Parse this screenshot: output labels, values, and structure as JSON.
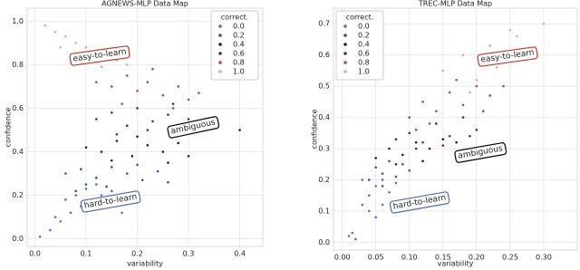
{
  "chart_data": [
    {
      "type": "scatter",
      "title": "AGNEWS-MLP Data Map",
      "xlabel": "variability",
      "ylabel": "confidence",
      "xlim": [
        -0.015,
        0.445
      ],
      "ylim": [
        -0.035,
        1.06
      ],
      "xticks": [
        {
          "value": 0,
          "label": "0.0"
        },
        {
          "value": 0.1,
          "label": "0.1"
        },
        {
          "value": 0.2,
          "label": "0.2"
        },
        {
          "value": 0.3,
          "label": "0.3"
        },
        {
          "value": 0.4,
          "label": "0.4"
        }
      ],
      "yticks": [
        {
          "value": 0,
          "label": "0.0"
        },
        {
          "value": 0.2,
          "label": "0.2"
        },
        {
          "value": 0.4,
          "label": "0.4"
        },
        {
          "value": 0.6,
          "label": "0.6"
        },
        {
          "value": 0.8,
          "label": "0.8"
        },
        {
          "value": 1,
          "label": "1.0"
        }
      ],
      "grid": true,
      "legend": "upper right",
      "legend_title": "correct.",
      "annotations": [
        {
          "text": "easy-to-learn",
          "color": "#c0392b"
        },
        {
          "text": "ambiguous",
          "color": "#000000"
        },
        {
          "text": "hard-to-learn",
          "color": "#4a6fb0"
        }
      ],
      "series": [
        {
          "name": "0.0",
          "color": "#4a6fe3",
          "x": [
            0.01,
            0.03,
            0.05,
            0.07,
            0.09,
            0.11,
            0.13,
            0.15,
            0.04,
            0.08,
            0.12,
            0.06,
            0.1,
            0.17
          ],
          "y": [
            0.01,
            0.04,
            0.08,
            0.12,
            0.15,
            0.18,
            0.2,
            0.22,
            0.1,
            0.2,
            0.25,
            0.18,
            0.23,
            0.12
          ]
        },
        {
          "name": "0.2",
          "color": "#3b4f9a",
          "x": [
            0.06,
            0.09,
            0.12,
            0.15,
            0.18,
            0.21,
            0.24,
            0.1,
            0.14,
            0.2,
            0.26,
            0.08
          ],
          "y": [
            0.3,
            0.32,
            0.28,
            0.33,
            0.3,
            0.27,
            0.31,
            0.25,
            0.24,
            0.34,
            0.26,
            0.22
          ]
        },
        {
          "name": "0.4",
          "color": "#222222",
          "x": [
            0.1,
            0.13,
            0.16,
            0.19,
            0.22,
            0.25,
            0.28,
            0.3,
            0.15,
            0.2,
            0.26,
            0.4
          ],
          "y": [
            0.42,
            0.4,
            0.45,
            0.38,
            0.43,
            0.4,
            0.44,
            0.38,
            0.36,
            0.47,
            0.35,
            0.5
          ]
        },
        {
          "name": "0.6",
          "color": "#5b2d2d",
          "x": [
            0.12,
            0.15,
            0.18,
            0.2,
            0.23,
            0.26,
            0.28,
            0.3,
            0.16,
            0.22,
            0.27,
            0.35
          ],
          "y": [
            0.55,
            0.58,
            0.52,
            0.6,
            0.54,
            0.57,
            0.5,
            0.55,
            0.48,
            0.5,
            0.62,
            0.52
          ]
        },
        {
          "name": "0.8",
          "color": "#b04545",
          "x": [
            0.12,
            0.15,
            0.18,
            0.2,
            0.22,
            0.25,
            0.28,
            0.3,
            0.17,
            0.23,
            0.27,
            0.32
          ],
          "y": [
            0.72,
            0.7,
            0.75,
            0.68,
            0.72,
            0.66,
            0.7,
            0.64,
            0.62,
            0.78,
            0.6,
            0.67
          ]
        },
        {
          "name": "1.0",
          "color": "#e8a0a0",
          "x": [
            0.02,
            0.04,
            0.06,
            0.08,
            0.1,
            0.12,
            0.14,
            0.16,
            0.05,
            0.09,
            0.13,
            0.18
          ],
          "y": [
            0.98,
            0.95,
            0.93,
            0.9,
            0.88,
            0.86,
            0.84,
            0.82,
            0.88,
            0.84,
            0.79,
            0.8
          ]
        }
      ]
    },
    {
      "type": "scatter",
      "title": "TREC-MLP Data Map",
      "xlabel": "variability",
      "ylabel": "confidence",
      "xlim": [
        -0.013,
        0.35
      ],
      "ylim": [
        -0.025,
        0.75
      ],
      "xticks": [
        {
          "value": 0,
          "label": "0.00"
        },
        {
          "value": 0.05,
          "label": "0.05"
        },
        {
          "value": 0.1,
          "label": "0.10"
        },
        {
          "value": 0.15,
          "label": "0.15"
        },
        {
          "value": 0.2,
          "label": "0.20"
        },
        {
          "value": 0.25,
          "label": "0.25"
        },
        {
          "value": 0.3,
          "label": "0.30"
        }
      ],
      "yticks": [
        {
          "value": 0,
          "label": "0.0"
        },
        0.1,
        0.2,
        0.3,
        0.4,
        0.5,
        0.6,
        0.7
      ],
      "grid": true,
      "legend": "upper left",
      "legend_title": "correct.",
      "annotations": [
        {
          "text": "easy-to-learn",
          "color": "#c0392b"
        },
        {
          "text": "ambiguous",
          "color": "#000000"
        },
        {
          "text": "hard-to-learn",
          "color": "#4a6fb0"
        }
      ],
      "series": [
        {
          "name": "0.0",
          "color": "#4a6fe3",
          "x": [
            0.01,
            0.015,
            0.02,
            0.03,
            0.04,
            0.05,
            0.06,
            0.07,
            0.04,
            0.06,
            0.08,
            0.03,
            0.05
          ],
          "y": [
            0.02,
            0.03,
            0.01,
            0.12,
            0.15,
            0.18,
            0.2,
            0.16,
            0.1,
            0.12,
            0.19,
            0.2,
            0.08
          ]
        },
        {
          "name": "0.2",
          "color": "#3b4f9a",
          "x": [
            0.04,
            0.05,
            0.06,
            0.07,
            0.08,
            0.09,
            0.1,
            0.06
          ],
          "y": [
            0.2,
            0.24,
            0.22,
            0.26,
            0.21,
            0.25,
            0.23,
            0.18
          ]
        },
        {
          "name": "0.4",
          "color": "#222222",
          "x": [
            0.05,
            0.07,
            0.09,
            0.11,
            0.13,
            0.15,
            0.08,
            0.12,
            0.17
          ],
          "y": [
            0.27,
            0.3,
            0.28,
            0.32,
            0.3,
            0.33,
            0.25,
            0.26,
            0.32
          ]
        },
        {
          "name": "0.6",
          "color": "#5b2d2d",
          "x": [
            0.08,
            0.1,
            0.12,
            0.14,
            0.16,
            0.18,
            0.2,
            0.11,
            0.15,
            0.19
          ],
          "y": [
            0.33,
            0.35,
            0.32,
            0.38,
            0.34,
            0.4,
            0.36,
            0.3,
            0.31,
            0.34
          ]
        },
        {
          "name": "0.8",
          "color": "#b04545",
          "x": [
            0.1,
            0.12,
            0.14,
            0.16,
            0.18,
            0.2,
            0.22,
            0.13,
            0.17,
            0.21,
            0.24,
            0.11
          ],
          "y": [
            0.4,
            0.45,
            0.42,
            0.48,
            0.44,
            0.5,
            0.47,
            0.38,
            0.52,
            0.42,
            0.5,
            0.36
          ]
        },
        {
          "name": "1.0",
          "color": "#e8a0a0",
          "x": [
            0.15,
            0.18,
            0.2,
            0.22,
            0.24,
            0.26,
            0.28,
            0.3,
            0.19,
            0.23,
            0.27,
            0.25
          ],
          "y": [
            0.55,
            0.6,
            0.52,
            0.63,
            0.58,
            0.66,
            0.62,
            0.7,
            0.48,
            0.56,
            0.6,
            0.68
          ]
        }
      ]
    }
  ]
}
